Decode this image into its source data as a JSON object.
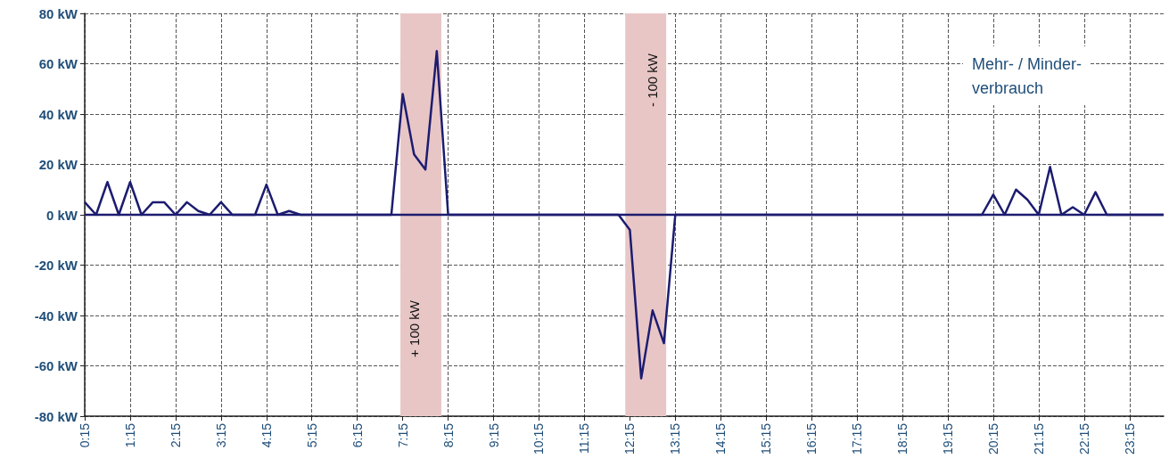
{
  "chart_data": {
    "type": "line",
    "annotations": [
      "Mehr- / Minder-\nverbrauch"
    ],
    "x": [
      0.25,
      0.5,
      0.75,
      1.0,
      1.25,
      1.5,
      1.75,
      2.0,
      2.25,
      2.5,
      2.75,
      3.0,
      3.25,
      3.5,
      4.0,
      4.25,
      4.5,
      4.75,
      5.0,
      7.0,
      7.25,
      7.5,
      7.75,
      8.0,
      8.25,
      12.0,
      12.25,
      12.5,
      12.75,
      13.0,
      13.25,
      20.0,
      20.25,
      20.5,
      20.75,
      21.0,
      21.25,
      21.5,
      21.75,
      22.0,
      22.25,
      22.5,
      22.75,
      24.0
    ],
    "series": [
      {
        "color": "#1c1c70",
        "values": [
          5,
          0,
          13,
          0,
          13,
          0,
          5,
          5,
          0,
          5,
          1.5,
          0,
          5,
          0,
          0,
          12,
          0,
          1.5,
          0,
          0,
          48,
          24,
          18,
          65,
          0,
          0,
          -6,
          -65,
          -38,
          -51,
          0,
          0,
          8,
          0,
          10,
          6,
          0,
          19,
          0,
          3,
          0,
          9,
          0,
          0
        ]
      }
    ],
    "xlim": [
      0.25,
      24
    ],
    "xticks": [
      {
        "value": 0.25,
        "label": "0:15"
      },
      {
        "value": 1.25,
        "label": "1:15"
      },
      {
        "value": 2.25,
        "label": "2:15"
      },
      {
        "value": 3.25,
        "label": "3:15"
      },
      {
        "value": 4.25,
        "label": "4:15"
      },
      {
        "value": 5.25,
        "label": "5:15"
      },
      {
        "value": 6.25,
        "label": "6:15"
      },
      {
        "value": 7.25,
        "label": "7:15"
      },
      {
        "value": 8.25,
        "label": "8:15"
      },
      {
        "value": 9.25,
        "label": "9:15"
      },
      {
        "value": 10.25,
        "label": "10:15"
      },
      {
        "value": 11.25,
        "label": "11:15"
      },
      {
        "value": 12.25,
        "label": "12:15"
      },
      {
        "value": 13.25,
        "label": "13:15"
      },
      {
        "value": 14.25,
        "label": "14:15"
      },
      {
        "value": 15.25,
        "label": "15:15"
      },
      {
        "value": 16.25,
        "label": "16:15"
      },
      {
        "value": 17.25,
        "label": "17:15"
      },
      {
        "value": 18.25,
        "label": "18:15"
      },
      {
        "value": 19.25,
        "label": "19:15"
      },
      {
        "value": 20.25,
        "label": "20:15"
      },
      {
        "value": 21.25,
        "label": "21:15"
      },
      {
        "value": 22.25,
        "label": "22:15"
      },
      {
        "value": 23.25,
        "label": "23:15"
      }
    ],
    "ylim": [
      -80,
      80
    ],
    "yticks": [
      {
        "value": -80,
        "label": "-80 kW"
      },
      {
        "value": -60,
        "label": "-60 kW"
      },
      {
        "value": -40,
        "label": "-40 kW"
      },
      {
        "value": -20,
        "label": "-20 kW"
      },
      {
        "value": 0,
        "label": "0 kW"
      },
      {
        "value": 20,
        "label": "20 kW"
      },
      {
        "value": 40,
        "label": "40 kW"
      },
      {
        "value": 60,
        "label": "60 kW"
      },
      {
        "value": 80,
        "label": "80 kW"
      }
    ],
    "bands": [
      {
        "axis": "x",
        "from": 7.2,
        "to": 8.1,
        "label": "+ 100 kW",
        "color": "#e8c6c6"
      },
      {
        "axis": "x",
        "from": 12.15,
        "to": 13.05,
        "label": "- 100 kW",
        "color": "#e8c6c6"
      }
    ],
    "ref_lines": [
      {
        "axis": "y",
        "value": 0,
        "color": "#1c1c70"
      }
    ],
    "grid": true,
    "marker": "none",
    "line_style": "solid"
  }
}
